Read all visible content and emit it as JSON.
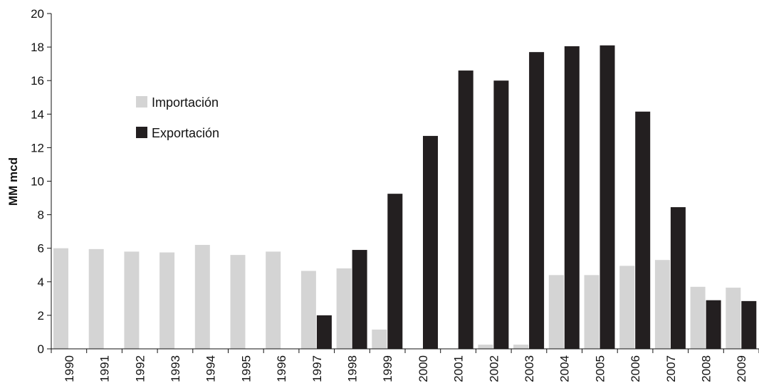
{
  "chart_data": {
    "type": "bar",
    "title": "",
    "xlabel": "",
    "ylabel": "MM mcd",
    "ylim": [
      0,
      20
    ],
    "yticks": [
      0,
      2,
      4,
      6,
      8,
      10,
      12,
      14,
      16,
      18,
      20
    ],
    "grid": false,
    "legend_position": "upper-left",
    "categories": [
      "1990",
      "1991",
      "1992",
      "1993",
      "1994",
      "1995",
      "1996",
      "1997",
      "1998",
      "1999",
      "2000",
      "2001",
      "2002",
      "2003",
      "2004",
      "2005",
      "2006",
      "2007",
      "2008",
      "2009"
    ],
    "series": [
      {
        "name": "Importación",
        "color": "#d4d4d4",
        "values": [
          6.0,
          5.95,
          5.8,
          5.75,
          6.2,
          5.6,
          5.8,
          4.65,
          4.8,
          1.15,
          0,
          0,
          0.25,
          0.25,
          4.4,
          4.4,
          4.95,
          5.3,
          3.7,
          3.65
        ]
      },
      {
        "name": "Exportación",
        "color": "#231f20",
        "values": [
          0,
          0,
          0,
          0,
          0,
          0,
          0,
          2.0,
          5.9,
          9.25,
          12.7,
          16.6,
          16.0,
          17.7,
          18.05,
          18.1,
          14.15,
          8.45,
          2.9,
          2.85
        ]
      }
    ]
  }
}
